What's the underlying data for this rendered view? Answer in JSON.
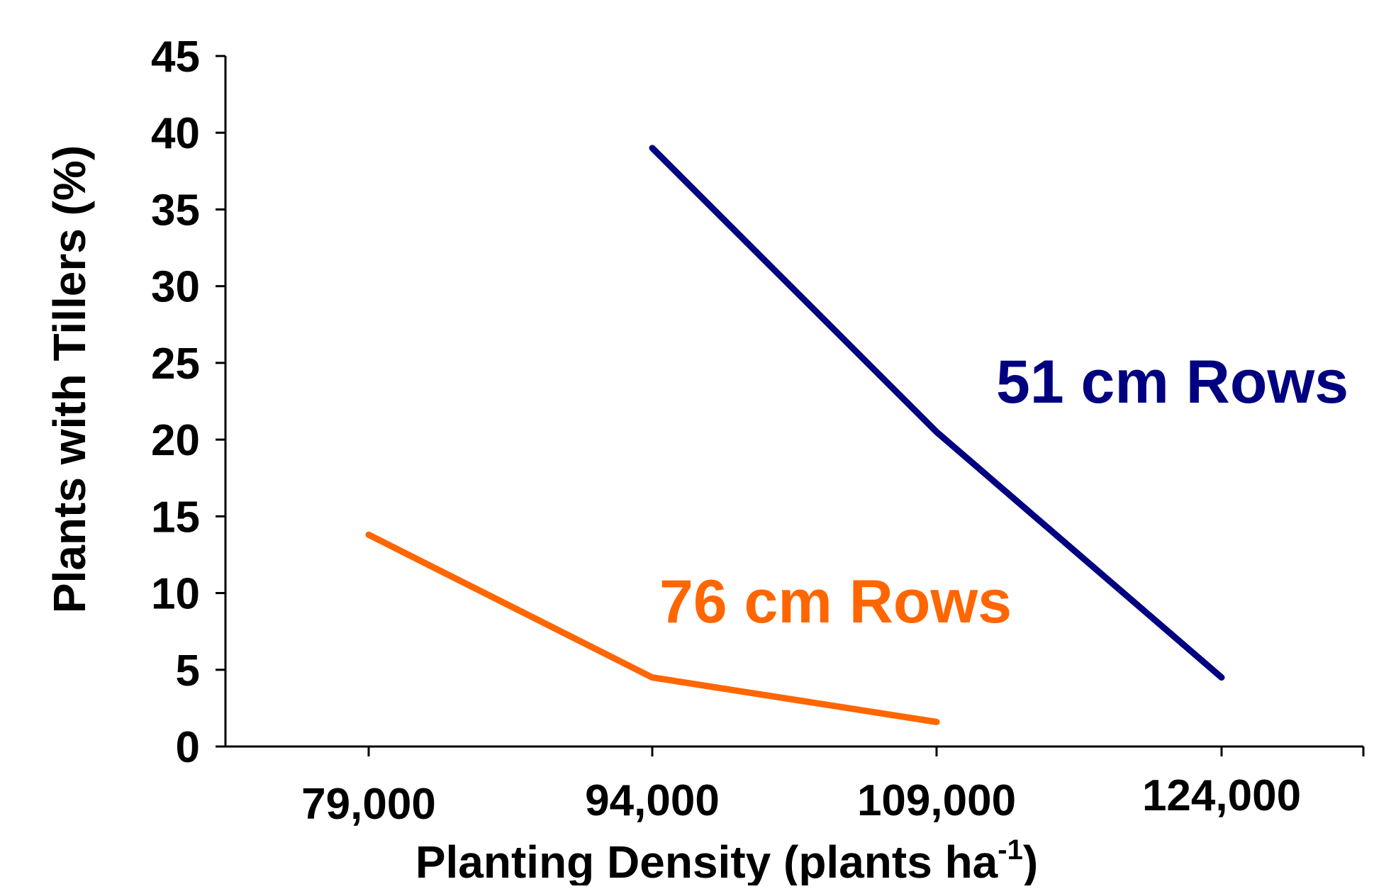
{
  "chart_data": {
    "type": "line",
    "title": "",
    "xlabel": "Planting Density (plants ha",
    "xlabel_superscript": "-1",
    "xlabel_suffix": ")",
    "ylabel": "Plants with Tillers (%)",
    "categories": [
      "79,000",
      "94,000",
      "109,000",
      "124,000"
    ],
    "ylim": [
      0,
      45
    ],
    "yticks": [
      "0",
      "5",
      "10",
      "15",
      "20",
      "25",
      "30",
      "35",
      "40",
      "45"
    ],
    "grid": false,
    "series": [
      {
        "name": "51 cm Rows",
        "color": "#000080",
        "values": [
          null,
          39,
          20.5,
          4.5
        ]
      },
      {
        "name": "76 cm Rows",
        "color": "#ff6600",
        "values": [
          13.8,
          4.5,
          1.6,
          null
        ]
      }
    ]
  }
}
